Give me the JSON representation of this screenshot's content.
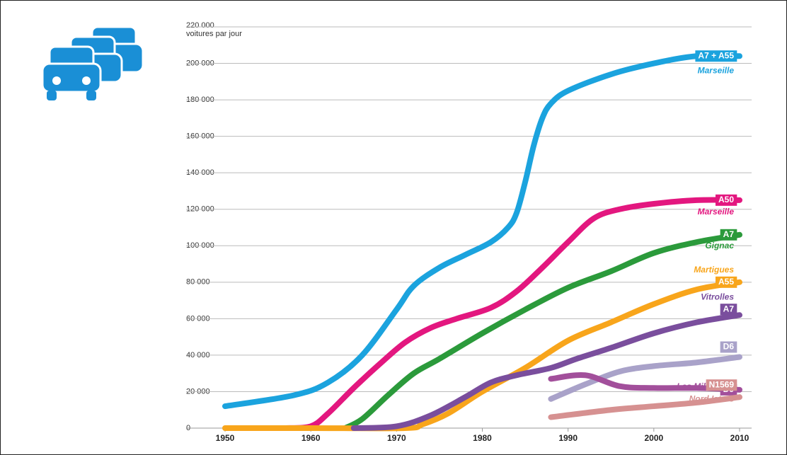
{
  "chart_data": {
    "type": "line",
    "y_axis_label": "voitures par jour",
    "xlim": [
      1950,
      2010
    ],
    "xticks": [
      1950,
      1960,
      1970,
      1980,
      1990,
      2000,
      2010
    ],
    "ylim": [
      0,
      220000
    ],
    "yticks": [
      0,
      {
        "value": 20000,
        "label": "20 000"
      },
      {
        "value": 40000,
        "label": "40 000"
      },
      {
        "value": 60000,
        "label": "60 000"
      },
      {
        "value": 80000,
        "label": "80 000"
      },
      {
        "value": 100000,
        "label": "100 000"
      },
      {
        "value": 120000,
        "label": "120 000"
      },
      {
        "value": 140000,
        "label": "140 000"
      },
      {
        "value": 160000,
        "label": "160 000"
      },
      {
        "value": 180000,
        "label": "180 000"
      },
      {
        "value": 200000,
        "label": "200 000"
      },
      {
        "value": 220000,
        "label": "220 000"
      }
    ],
    "grid": true,
    "series": [
      {
        "name": "A7 + A55",
        "place": "Marseille",
        "color": "#1ba3de",
        "x": [
          1950,
          1958,
          1962,
          1966,
          1970,
          1972,
          1975,
          1978,
          1981,
          1983,
          1984,
          1985,
          1986,
          1987,
          1988,
          1990,
          1995,
          2000,
          2005,
          2010
        ],
        "values": [
          12000,
          18000,
          25000,
          40000,
          65000,
          78000,
          88000,
          95000,
          102000,
          110000,
          118000,
          135000,
          155000,
          170000,
          178000,
          185000,
          194000,
          200000,
          204000,
          204000
        ]
      },
      {
        "name": "A50",
        "place": "Marseille",
        "color": "#e3177f",
        "x": [
          1957,
          1960,
          1962,
          1965,
          1968,
          1971,
          1974,
          1977,
          1981,
          1984,
          1987,
          1990,
          1993,
          1996,
          2000,
          2005,
          2010
        ],
        "values": [
          0,
          1000,
          8000,
          22000,
          35000,
          47000,
          55000,
          60000,
          66000,
          75000,
          88000,
          102000,
          115000,
          120000,
          123000,
          125000,
          125000
        ]
      },
      {
        "name": "A7",
        "place": "Gignac",
        "color": "#2b9a3b",
        "x": [
          1964,
          1966,
          1969,
          1972,
          1975,
          1980,
          1985,
          1990,
          1995,
          2000,
          2005,
          2010
        ],
        "values": [
          0,
          5000,
          18000,
          30000,
          38000,
          52000,
          65000,
          77000,
          86000,
          96000,
          102000,
          106000
        ]
      },
      {
        "name": "A55",
        "place": "Martigues",
        "color": "#f8a51b",
        "x": [
          1950,
          1960,
          1971,
          1973,
          1976,
          1980,
          1985,
          1990,
          1995,
          2000,
          2005,
          2010
        ],
        "values": [
          0,
          0,
          0,
          2000,
          8000,
          20000,
          33000,
          48000,
          58000,
          68000,
          76000,
          80000
        ]
      },
      {
        "name": "A7",
        "place": "Vitrolles",
        "color": "#7a4e9d",
        "x": [
          1965,
          1970,
          1974,
          1978,
          1981,
          1984,
          1988,
          1991,
          1995,
          2000,
          2005,
          2010
        ],
        "values": [
          0,
          1000,
          7000,
          17000,
          25000,
          29000,
          33000,
          38000,
          44000,
          52000,
          58000,
          62000
        ]
      },
      {
        "name": "D6",
        "color": "#a9a2c9",
        "x": [
          1988,
          1992,
          1996,
          2000,
          2005,
          2010
        ],
        "values": [
          16000,
          24000,
          31000,
          34000,
          36000,
          39000
        ]
      },
      {
        "name": "D9",
        "place": "Les Milles",
        "color": "#a24f9b",
        "x": [
          1988,
          1992,
          1996,
          2000,
          2005,
          2010
        ],
        "values": [
          27000,
          29000,
          23000,
          22000,
          22000,
          21000
        ]
      },
      {
        "name": "N1569",
        "place": "Nord Istres",
        "color": "#d69191",
        "x": [
          1988,
          1995,
          2000,
          2005,
          2010
        ],
        "values": [
          6000,
          10000,
          12000,
          14000,
          17000
        ]
      }
    ]
  }
}
